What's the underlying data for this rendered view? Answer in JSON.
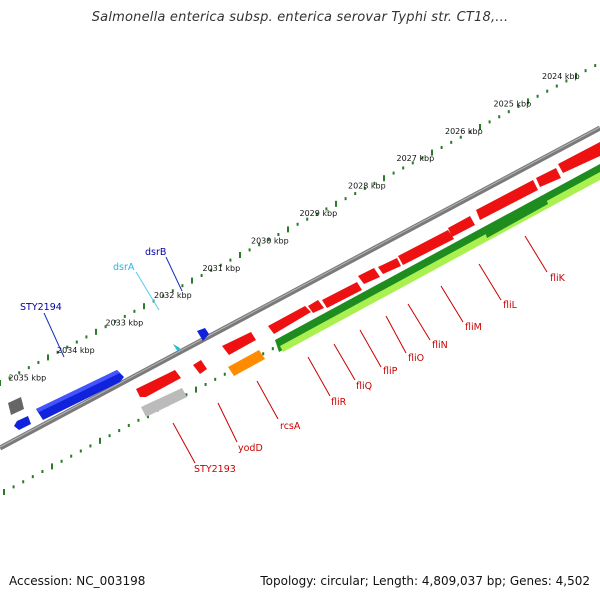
{
  "title": "Salmonella enterica subsp. enterica serovar Typhi str. CT18,...",
  "footer": {
    "accession": "Accession: NC_003198",
    "summary": "Topology: circular; Length: 4,809,037 bp; Genes: 4,502"
  },
  "colors": {
    "forward_gene": "#ee1111",
    "reverse_gene": "#1122dd",
    "cds_green": "#1e8c1e",
    "cds_light": "#aaf050",
    "pseudo_gray": "#bbbbbb",
    "orange": "#ff8c00",
    "label_red": "#cc0000",
    "label_blue": "#0000aa",
    "label_cyan": "#22bbdd",
    "scale_ticks": "#2a7a2a",
    "backbone": "#808080"
  },
  "scale": {
    "unit": "kbp",
    "labels": [
      "2024 kbp",
      "2025 kbp",
      "2026 kbp",
      "2027 kbp",
      "2028 kbp",
      "2029 kbp",
      "2030 kbp",
      "2031 kbp",
      "2032 kbp",
      "2033 kbp",
      "2034 kbp",
      "2035 kbp"
    ]
  },
  "genes": {
    "top": [
      "STY2194",
      "dsrA",
      "dsrB"
    ],
    "bottom": [
      "STY2193",
      "yodD",
      "rcsA",
      "fliR",
      "fliQ",
      "fliP",
      "fliO",
      "fliN",
      "fliM",
      "fliL",
      "fliK"
    ]
  }
}
